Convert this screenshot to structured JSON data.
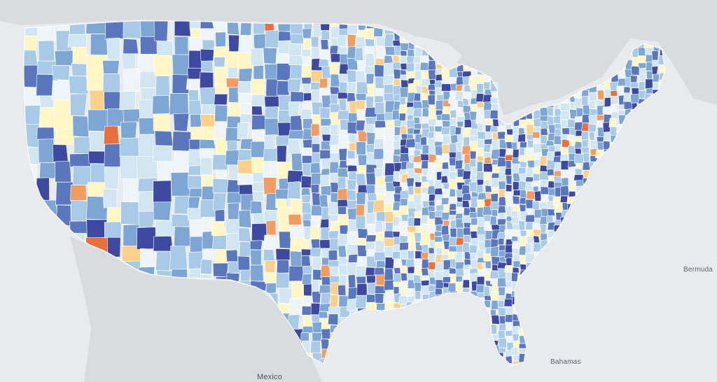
{
  "map": {
    "labels": {
      "bermuda": "Bermuda",
      "bahamas": "Bahamas",
      "mexico": "Mexico"
    },
    "colors": {
      "land_background": "#d6d9dc",
      "water": "#e8eaec",
      "county_border": "#ffffff",
      "scale": [
        "#3e4aa0",
        "#5a76bd",
        "#7ea6d4",
        "#a9cae6",
        "#d2e6f2",
        "#eef4f8",
        "#fef6c4",
        "#fbd08a",
        "#f29c5f",
        "#e96f3f"
      ]
    }
  }
}
